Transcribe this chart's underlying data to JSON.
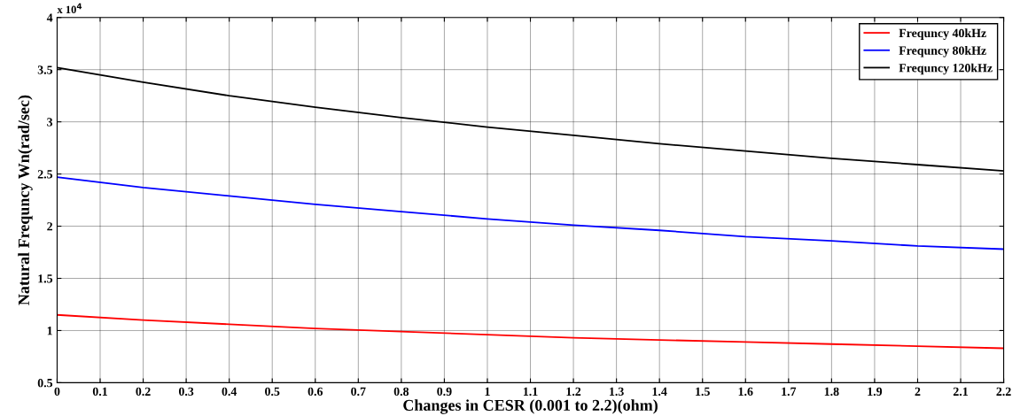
{
  "chart_data": {
    "type": "line",
    "xlabel": "Changes in CESR (0.001 to 2.2)(ohm)",
    "ylabel": "Natural Frequncy Wn(rad/sec)",
    "annotations": [
      "x 10$^{4}$"
    ],
    "x": [
      0,
      0.2,
      0.4,
      0.6,
      0.8,
      1.0,
      1.2,
      1.4,
      1.6,
      1.8,
      2.0,
      2.2
    ],
    "series": [
      {
        "name": "Frequncy 40kHz",
        "color": "#ff0000",
        "values": [
          1.15,
          1.1,
          1.06,
          1.02,
          0.99,
          0.96,
          0.93,
          0.91,
          0.89,
          0.87,
          0.85,
          0.83
        ]
      },
      {
        "name": "Frequncy 80kHz",
        "color": "#0000ff",
        "values": [
          2.47,
          2.37,
          2.29,
          2.21,
          2.14,
          2.07,
          2.01,
          1.96,
          1.9,
          1.86,
          1.81,
          1.78
        ]
      },
      {
        "name": "Frequncy 120kHz",
        "color": "#000000",
        "values": [
          3.52,
          3.38,
          3.25,
          3.14,
          3.04,
          2.95,
          2.87,
          2.79,
          2.72,
          2.65,
          2.59,
          2.53
        ]
      }
    ],
    "xlim": [
      0,
      2.2
    ],
    "xticks": [
      0,
      0.1,
      0.2,
      0.3,
      0.4,
      0.5,
      0.6,
      0.7,
      0.8,
      0.9,
      1,
      1.1,
      1.2,
      1.3,
      1.4,
      1.5,
      1.6,
      1.7,
      1.8,
      1.9,
      2,
      2.1,
      2.2
    ],
    "ylim": [
      0.5,
      4
    ],
    "yticks": [
      0.5,
      1,
      1.5,
      2,
      2.5,
      3,
      3.5,
      4
    ],
    "grid": true,
    "legend": "top right",
    "marker": "none",
    "line_style": "solid"
  }
}
